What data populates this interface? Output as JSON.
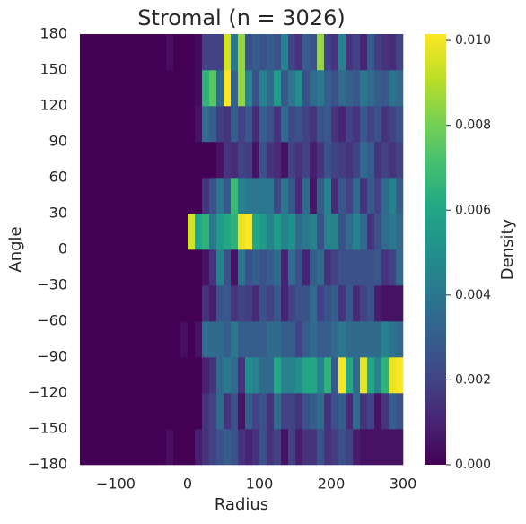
{
  "chart_data": {
    "type": "heatmap",
    "title": "Stromal (n = 3026)",
    "x_label": "Radius",
    "y_label": "Angle",
    "colorbar_label": "Density",
    "colormap": "viridis",
    "x_bins": [
      -150,
      -140,
      -130,
      -120,
      -110,
      -100,
      -90,
      -80,
      -70,
      -60,
      -50,
      -40,
      -30,
      -20,
      -10,
      0,
      10,
      20,
      30,
      40,
      50,
      60,
      70,
      80,
      90,
      100,
      110,
      120,
      130,
      140,
      150,
      160,
      170,
      180,
      190,
      200,
      210,
      220,
      230,
      240,
      250,
      260,
      270,
      280,
      290,
      300
    ],
    "y_bins": [
      -180,
      -150,
      -120,
      -90,
      -60,
      -30,
      0,
      30,
      60,
      90,
      120,
      150,
      180
    ],
    "values": [
      [
        0,
        0,
        0,
        0,
        0,
        0,
        0,
        0,
        0,
        0,
        0,
        0,
        0.0004,
        0,
        0,
        0,
        0.0008,
        0.0015,
        0.002,
        0.0025,
        0.003,
        0.0025,
        0.0015,
        0.001,
        0.0015,
        0.0025,
        0.0015,
        0.002,
        0.0005,
        0.002,
        0.0008,
        0.0015,
        0.0015,
        0.0025,
        0.0015,
        0.0018,
        0.0025,
        0.002,
        0.0008,
        0.0005,
        0.0005,
        0.0005,
        0.0005,
        0.0005,
        0.0005
      ],
      [
        0,
        0,
        0,
        0,
        0,
        0,
        0,
        0,
        0,
        0,
        0,
        0,
        0,
        0,
        0,
        0,
        0,
        0.0015,
        0.002,
        0.0035,
        0.0015,
        0.0025,
        0.0005,
        0.003,
        0.002,
        0.0025,
        0.0015,
        0.0035,
        0.002,
        0.002,
        0.0015,
        0.0025,
        0.003,
        0.0035,
        0.0015,
        0.0025,
        0.003,
        0.0012,
        0.0035,
        0.0015,
        0.002,
        0.0005,
        0.0015,
        0.003,
        0.0025
      ],
      [
        0,
        0,
        0,
        0,
        0,
        0,
        0,
        0,
        0,
        0,
        0,
        0,
        0,
        0,
        0,
        0,
        0,
        0.001,
        0.0015,
        0.0035,
        0.004,
        0.0035,
        0.0015,
        0.005,
        0.0045,
        0.0035,
        0.0035,
        0.006,
        0.0045,
        0.0045,
        0.005,
        0.006,
        0.006,
        0.0045,
        0.0065,
        0.0028,
        0.01,
        0.006,
        0.0035,
        0.0098,
        0.006,
        0.0045,
        0.0065,
        0.0098,
        0.0102
      ],
      [
        0,
        0,
        0,
        0,
        0,
        0,
        0,
        0,
        0,
        0,
        0,
        0,
        0,
        0,
        0.0004,
        0,
        0.0005,
        0.0035,
        0.0035,
        0.0035,
        0.003,
        0.004,
        0.003,
        0.003,
        0.003,
        0.003,
        0.0035,
        0.0035,
        0.003,
        0.003,
        0.002,
        0.003,
        0.0035,
        0.003,
        0.003,
        0.0035,
        0.004,
        0.0035,
        0.0035,
        0.0035,
        0.0035,
        0.0035,
        0.0045,
        0.0038,
        0.0035
      ],
      [
        0,
        0,
        0,
        0,
        0,
        0,
        0,
        0,
        0,
        0,
        0,
        0,
        0,
        0,
        0,
        0,
        0,
        0.0015,
        0.0008,
        0.0025,
        0.0028,
        0.0015,
        0.002,
        0.0018,
        0.0012,
        0.0025,
        0.002,
        0.0028,
        0.001,
        0.002,
        0.0025,
        0.0025,
        0.0035,
        0.002,
        0.0025,
        0.003,
        0.0015,
        0.0028,
        0.0012,
        0.002,
        0.0025,
        0.0008,
        0.0005,
        0.0005,
        0.0005
      ],
      [
        0,
        0,
        0,
        0,
        0,
        0,
        0,
        0,
        0,
        0,
        0,
        0,
        0,
        0,
        0,
        0,
        0,
        0.0005,
        0.0015,
        0.0045,
        0.0025,
        0.0005,
        0.004,
        0.0025,
        0.003,
        0.0025,
        0.003,
        0.0035,
        0.001,
        0.0035,
        0.0025,
        0.001,
        0.003,
        0.0035,
        0.0015,
        0.002,
        0.0025,
        0.0025,
        0.0025,
        0.0025,
        0.0025,
        0.0028,
        0.0015,
        0.002,
        0.0035
      ],
      [
        0,
        0,
        0,
        0,
        0,
        0,
        0,
        0,
        0,
        0,
        0,
        0,
        0,
        0,
        0,
        0.0095,
        0.006,
        0.0065,
        0.004,
        0.0055,
        0.006,
        0.0065,
        0.0098,
        0.0102,
        0.006,
        0.0055,
        0.0045,
        0.0055,
        0.0045,
        0.005,
        0.0035,
        0.004,
        0.0045,
        0.0025,
        0.0045,
        0.0045,
        0.0025,
        0.0035,
        0.0045,
        0.0035,
        0.0015,
        0.0025,
        0.0035,
        0.004,
        0.0035
      ],
      [
        0,
        0,
        0,
        0,
        0,
        0,
        0,
        0,
        0,
        0,
        0,
        0,
        0,
        0,
        0,
        0,
        0,
        0.0015,
        0.0025,
        0.004,
        0.0028,
        0.0068,
        0.0045,
        0.004,
        0.004,
        0.004,
        0.004,
        0.0022,
        0.004,
        0.0028,
        0.0012,
        0.0035,
        0.0006,
        0.003,
        0.0045,
        0.0012,
        0.0028,
        0.002,
        0.0035,
        0.0015,
        0.0028,
        0.002,
        0.0035,
        0.0045,
        0.003
      ],
      [
        0,
        0,
        0,
        0,
        0,
        0,
        0,
        0,
        0,
        0,
        0,
        0,
        0,
        0,
        0,
        0,
        0,
        0,
        0,
        0.0005,
        0.0015,
        0.0012,
        0.002,
        0.0018,
        0.0005,
        0.0025,
        0.0015,
        0.0012,
        0.0005,
        0.002,
        0.0015,
        0.002,
        0.0008,
        0.0015,
        0.0025,
        0.002,
        0.0018,
        0.0015,
        0.002,
        0.0035,
        0.003,
        0.0015,
        0.002,
        0.0015,
        0.002
      ],
      [
        0,
        0,
        0,
        0,
        0,
        0,
        0,
        0,
        0,
        0,
        0,
        0,
        0,
        0,
        0,
        0,
        0.0005,
        0.0035,
        0.003,
        0.0018,
        0.0015,
        0.003,
        0.002,
        0.0028,
        0.0012,
        0.003,
        0.0025,
        0.0015,
        0.0035,
        0.0022,
        0.0025,
        0.002,
        0.0015,
        0.0025,
        0.0028,
        0.0015,
        0.001,
        0.002,
        0.0015,
        0.0028,
        0.002,
        0.0025,
        0.0015,
        0.002,
        0.0025
      ],
      [
        0,
        0,
        0,
        0,
        0,
        0,
        0,
        0,
        0,
        0,
        0,
        0,
        0,
        0,
        0,
        0,
        0.0003,
        0.0065,
        0.0075,
        0.0035,
        0.0102,
        0.0032,
        0.0085,
        0.0045,
        0.0025,
        0.0045,
        0.0035,
        0.0055,
        0.0028,
        0.004,
        0.005,
        0.0025,
        0.0035,
        0.004,
        0.003,
        0.0025,
        0.0035,
        0.0032,
        0.0028,
        0.004,
        0.0035,
        0.003,
        0.0028,
        0.0038,
        0.0035
      ],
      [
        0,
        0,
        0,
        0,
        0,
        0,
        0,
        0,
        0,
        0,
        0,
        0,
        0.0004,
        0,
        0,
        0,
        0.0003,
        0.002,
        0.002,
        0.002,
        0.0095,
        0.004,
        0.0085,
        0.0025,
        0.003,
        0.0025,
        0.003,
        0.0025,
        0.0045,
        0.002,
        0.0015,
        0.003,
        0.0025,
        0.0085,
        0.002,
        0.0015,
        0.0045,
        0.0015,
        0.002,
        0.001,
        0.003,
        0.0018,
        0.0015,
        0.0012,
        0.002
      ]
    ],
    "xlim": [
      -150,
      300
    ],
    "ylim": [
      -180,
      180
    ],
    "xticks": [
      {
        "value": -100,
        "label": "−100"
      },
      0,
      100,
      200,
      300
    ],
    "yticks": [
      {
        "value": -180,
        "label": "−180"
      },
      {
        "value": -150,
        "label": "−150"
      },
      {
        "value": -120,
        "label": "−120"
      },
      {
        "value": -90,
        "label": "−90"
      },
      {
        "value": -60,
        "label": "−60"
      },
      {
        "value": -30,
        "label": "−30"
      },
      0,
      30,
      60,
      90,
      120,
      150,
      180
    ],
    "clim": [
      0,
      0.01015
    ],
    "cticks": [
      {
        "value": 0,
        "label": "0.000"
      },
      {
        "value": 0.002,
        "label": "0.002"
      },
      {
        "value": 0.004,
        "label": "0.004"
      },
      {
        "value": 0.006,
        "label": "0.006"
      },
      {
        "value": 0.008,
        "label": "0.008"
      },
      {
        "value": 0.01,
        "label": "0.010"
      }
    ]
  }
}
